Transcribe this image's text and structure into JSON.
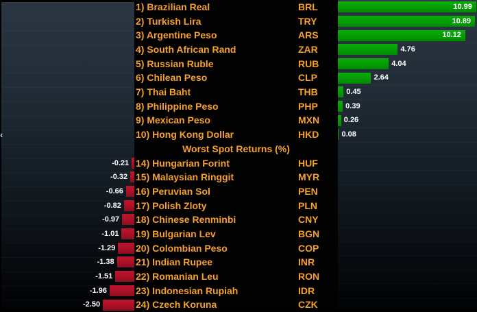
{
  "chrome": {
    "collapse_arrow_icon": "‹"
  },
  "chart_data": {
    "type": "bar",
    "orientation": "horizontal",
    "unit": "%",
    "axis": {
      "max_abs": 11.05
    },
    "legend": "none",
    "grid": "off",
    "colors": {
      "positive_bar": "#04A004",
      "negative_bar": "#AE1228",
      "currency_text": "#F5A12F",
      "value_text": "#FFFFFF",
      "list_background": "#000000",
      "panel_gradient_top": "#2A3642",
      "panel_gradient_bottom": "#020305"
    },
    "sections": [
      {
        "header": "",
        "side": "right",
        "rows": [
          {
            "rank": 1,
            "name": "Brazilian Real",
            "ticker": "BRL",
            "value": 10.99,
            "value_label": "10.99"
          },
          {
            "rank": 2,
            "name": "Turkish Lira",
            "ticker": "TRY",
            "value": 10.89,
            "value_label": "10.89"
          },
          {
            "rank": 3,
            "name": "Argentine Peso",
            "ticker": "ARS",
            "value": 10.12,
            "value_label": "10.12"
          },
          {
            "rank": 4,
            "name": "South African Rand",
            "ticker": "ZAR",
            "value": 4.76,
            "value_label": "4.76"
          },
          {
            "rank": 5,
            "name": "Russian Ruble",
            "ticker": "RUB",
            "value": 4.04,
            "value_label": "4.04"
          },
          {
            "rank": 6,
            "name": "Chilean Peso",
            "ticker": "CLP",
            "value": 2.64,
            "value_label": "2.64"
          },
          {
            "rank": 7,
            "name": "Thai Baht",
            "ticker": "THB",
            "value": 0.45,
            "value_label": "0.45"
          },
          {
            "rank": 8,
            "name": "Philippine Peso",
            "ticker": "PHP",
            "value": 0.39,
            "value_label": "0.39"
          },
          {
            "rank": 9,
            "name": "Mexican Peso",
            "ticker": "MXN",
            "value": 0.26,
            "value_label": "0.26"
          },
          {
            "rank": 10,
            "name": "Hong Kong Dollar",
            "ticker": "HKD",
            "value": 0.08,
            "value_label": "0.08"
          }
        ]
      },
      {
        "header": "Worst Spot Returns (%)",
        "side": "left",
        "rows": [
          {
            "rank": 14,
            "name": "Hungarian Forint",
            "ticker": "HUF",
            "value": -0.21,
            "value_label": "-0.21"
          },
          {
            "rank": 15,
            "name": "Malaysian Ringgit",
            "ticker": "MYR",
            "value": -0.32,
            "value_label": "-0.32"
          },
          {
            "rank": 16,
            "name": "Peruvian Sol",
            "ticker": "PEN",
            "value": -0.66,
            "value_label": "-0.66"
          },
          {
            "rank": 17,
            "name": "Polish Zloty",
            "ticker": "PLN",
            "value": -0.82,
            "value_label": "-0.82"
          },
          {
            "rank": 18,
            "name": "Chinese Renminbi",
            "ticker": "CNY",
            "value": -0.97,
            "value_label": "-0.97"
          },
          {
            "rank": 19,
            "name": "Bulgarian Lev",
            "ticker": "BGN",
            "value": -1.01,
            "value_label": "-1.01"
          },
          {
            "rank": 20,
            "name": "Colombian Peso",
            "ticker": "COP",
            "value": -1.29,
            "value_label": "-1.29"
          },
          {
            "rank": 21,
            "name": "Indian Rupee",
            "ticker": "INR",
            "value": -1.38,
            "value_label": "-1.38"
          },
          {
            "rank": 22,
            "name": "Romanian Leu",
            "ticker": "RON",
            "value": -1.51,
            "value_label": "-1.51"
          },
          {
            "rank": 23,
            "name": "Indonesian Rupiah",
            "ticker": "IDR",
            "value": -1.96,
            "value_label": "-1.96"
          },
          {
            "rank": 24,
            "name": "Czech Koruna",
            "ticker": "CZK",
            "value": -2.5,
            "value_label": "-2.50"
          }
        ]
      }
    ]
  }
}
